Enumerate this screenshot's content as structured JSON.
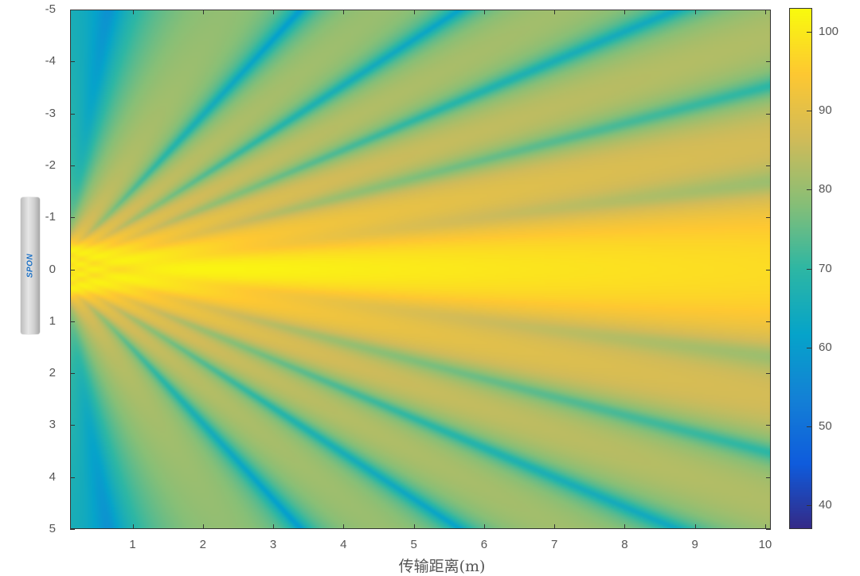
{
  "chart_data": {
    "type": "heatmap",
    "title": "",
    "xlabel": "传输距离(m)",
    "ylabel": "",
    "xlim": [
      0.11,
      10.08
    ],
    "ylim": [
      -5,
      5
    ],
    "y_direction": "reversed",
    "xticks": [
      "1",
      "2",
      "3",
      "4",
      "5",
      "6",
      "7",
      "8",
      "9",
      "10"
    ],
    "yticks": [
      "-5",
      "-4",
      "-3",
      "-2",
      "-1",
      "0",
      "1",
      "2",
      "3",
      "4",
      "5"
    ],
    "colorbar": {
      "clim": [
        37,
        103
      ],
      "ticks": [
        "40",
        "50",
        "60",
        "70",
        "80",
        "90",
        "100"
      ],
      "colormap": "parula",
      "colors": [
        "#352a87",
        "#0f5cdd",
        "#1481d6",
        "#06a4ca",
        "#2eb7a4",
        "#87bf77",
        "#d1bb59",
        "#fec832",
        "#f9fb0e"
      ]
    },
    "description_of_field": "",
    "grid": false
  },
  "logo": {
    "text": "SPON"
  }
}
